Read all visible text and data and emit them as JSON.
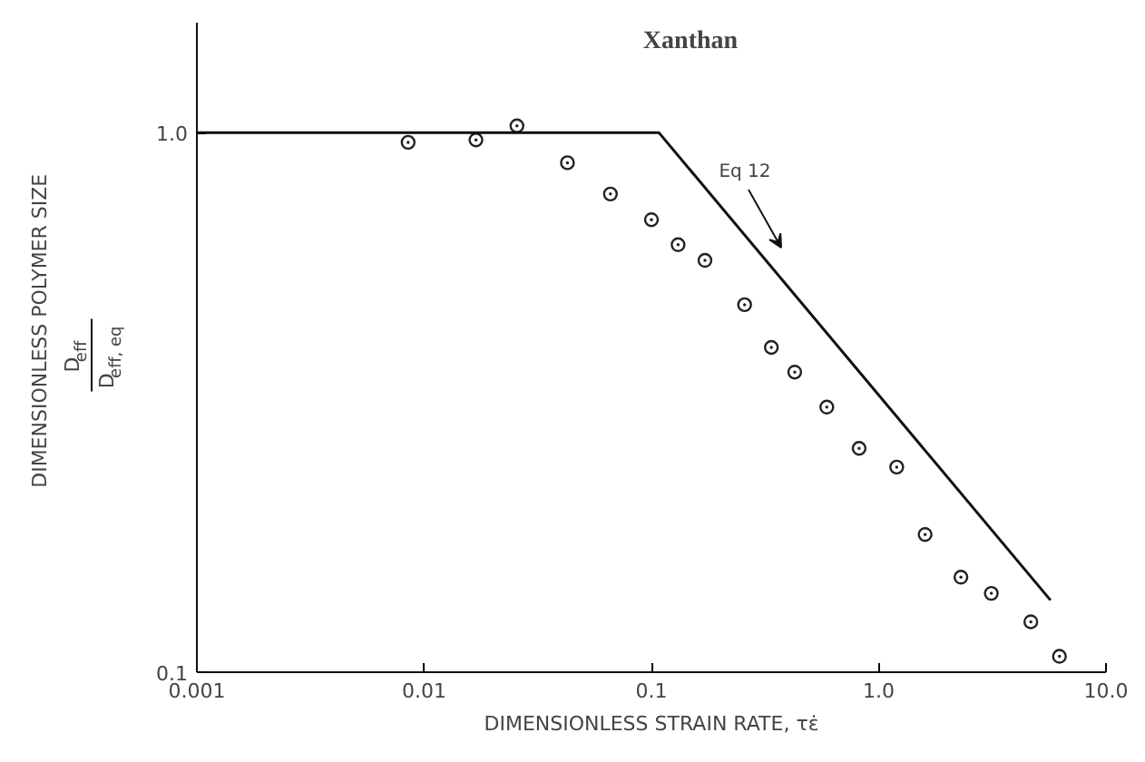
{
  "chart_data": {
    "type": "scatter",
    "title": "Xanthan",
    "xlabel": "DIMENSIONLESS STRAIN RATE, τε̇",
    "ylabel": "DIMENSIONLESS POLYMER SIZE\nD$_{eff}$\nD$_{eff, eq}$",
    "log": "xy",
    "xlim": [
      0.001,
      10
    ],
    "ylim": [
      0.1,
      1.6
    ],
    "xticks": [
      {
        "value": 0.001,
        "label": "0.001"
      },
      {
        "value": 0.01,
        "label": "0.01"
      },
      {
        "value": 0.1,
        "label": "0.1"
      },
      {
        "value": 1,
        "label": "1.0"
      },
      {
        "value": 10,
        "label": "10.0"
      }
    ],
    "yticks": [
      {
        "value": 0.1,
        "label": "0.1"
      },
      {
        "value": 1,
        "label": "1.0"
      }
    ],
    "grid": false,
    "annotations": [
      "Eq 12"
    ],
    "series": [
      {
        "color": "#222222",
        "marker": "circle",
        "x": [
          0.0085,
          0.0169,
          0.0256,
          0.0427,
          0.066,
          0.1,
          0.131,
          0.172,
          0.257,
          0.337,
          0.427,
          0.591,
          0.82,
          1.2,
          1.6,
          2.3,
          3.13,
          4.67,
          6.24
        ],
        "values": [
          0.96,
          0.97,
          1.03,
          0.88,
          0.77,
          0.69,
          0.62,
          0.58,
          0.48,
          0.4,
          0.36,
          0.31,
          0.26,
          0.24,
          0.18,
          0.15,
          0.14,
          0.124,
          0.107
        ]
      },
      {
        "type": "line",
        "color": "#111111",
        "line_style": "solid",
        "x": [
          0.001,
          0.108,
          5.7
        ],
        "values": [
          1.0,
          1.0,
          0.136
        ]
      }
    ]
  }
}
